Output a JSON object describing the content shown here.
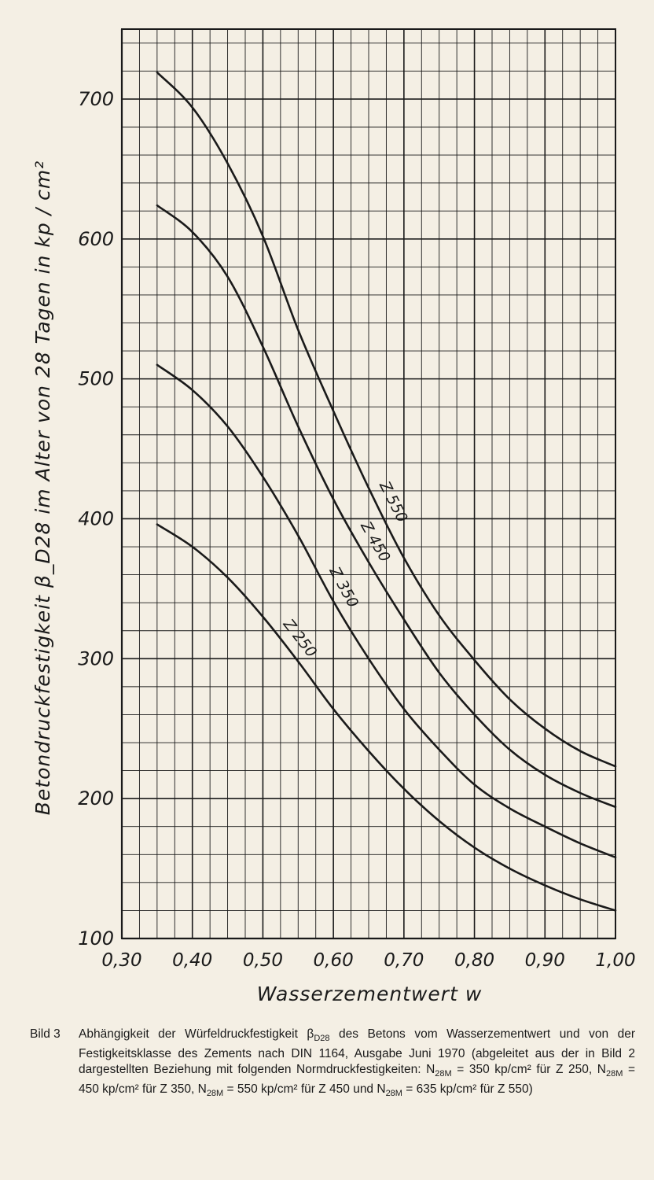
{
  "chart_data": {
    "type": "line",
    "xlabel": "Wasserzementwert w",
    "ylabel": "Betondruckfestigkeit β_D28 im Alter von 28 Tagen in kp / cm²",
    "xlim": [
      0.3,
      1.0
    ],
    "ylim": [
      100,
      750
    ],
    "x_ticks": [
      "0,30",
      "0,40",
      "0,50",
      "0,60",
      "0,70",
      "0,80",
      "0,90",
      "1,00"
    ],
    "y_ticks": [
      "100",
      "200",
      "300",
      "400",
      "500",
      "600",
      "700"
    ],
    "grid": "on",
    "series": [
      {
        "name": "Z 250",
        "points": [
          [
            0.35,
            396
          ],
          [
            0.4,
            380
          ],
          [
            0.45,
            358
          ],
          [
            0.5,
            330
          ],
          [
            0.55,
            298
          ],
          [
            0.6,
            264
          ],
          [
            0.65,
            234
          ],
          [
            0.7,
            207
          ],
          [
            0.75,
            184
          ],
          [
            0.8,
            165
          ],
          [
            0.85,
            150
          ],
          [
            0.9,
            138
          ],
          [
            0.95,
            128
          ],
          [
            1.0,
            120
          ]
        ]
      },
      {
        "name": "Z 350",
        "points": [
          [
            0.35,
            510
          ],
          [
            0.4,
            492
          ],
          [
            0.45,
            466
          ],
          [
            0.5,
            430
          ],
          [
            0.55,
            388
          ],
          [
            0.6,
            341
          ],
          [
            0.65,
            300
          ],
          [
            0.7,
            264
          ],
          [
            0.75,
            235
          ],
          [
            0.8,
            210
          ],
          [
            0.85,
            193
          ],
          [
            0.9,
            180
          ],
          [
            0.95,
            168
          ],
          [
            1.0,
            158
          ]
        ]
      },
      {
        "name": "Z 450",
        "points": [
          [
            0.35,
            624
          ],
          [
            0.4,
            605
          ],
          [
            0.45,
            573
          ],
          [
            0.5,
            523
          ],
          [
            0.55,
            466
          ],
          [
            0.6,
            414
          ],
          [
            0.65,
            369
          ],
          [
            0.7,
            328
          ],
          [
            0.75,
            290
          ],
          [
            0.8,
            260
          ],
          [
            0.85,
            235
          ],
          [
            0.9,
            217
          ],
          [
            0.95,
            204
          ],
          [
            1.0,
            194
          ]
        ]
      },
      {
        "name": "Z 550",
        "points": [
          [
            0.35,
            719
          ],
          [
            0.4,
            694
          ],
          [
            0.45,
            654
          ],
          [
            0.5,
            602
          ],
          [
            0.55,
            535
          ],
          [
            0.6,
            477
          ],
          [
            0.65,
            422
          ],
          [
            0.7,
            372
          ],
          [
            0.75,
            331
          ],
          [
            0.8,
            299
          ],
          [
            0.85,
            271
          ],
          [
            0.9,
            250
          ],
          [
            0.95,
            234
          ],
          [
            1.0,
            223
          ]
        ]
      }
    ]
  },
  "caption": {
    "label": "Bild 3",
    "text_1": "Abhängigkeit der Würfeldruckfestigkeit β",
    "sub_1": "D28",
    "text_2": " des Betons vom Wasserzementwert und von der Festigkeitsklasse des Zements nach DIN 1164, Ausgabe Juni 1970 (abgeleitet aus der in Bild 2 dargestellten Beziehung mit folgenden Normdruckfestigkeiten: N",
    "sub_2": "28M",
    "text_3": " = 350 kp/cm² für Z 250, N",
    "sub_3": "28M",
    "text_4": " = 450 kp/cm² für Z 350, N",
    "sub_4": "28M",
    "text_5": " = 550 kp/cm² für Z 450 und N",
    "sub_5": "28M",
    "text_6": " = 635 kp/cm² für Z 550)"
  },
  "colors": {
    "ink": "#1a1a1a",
    "paper": "#f4efe4"
  }
}
